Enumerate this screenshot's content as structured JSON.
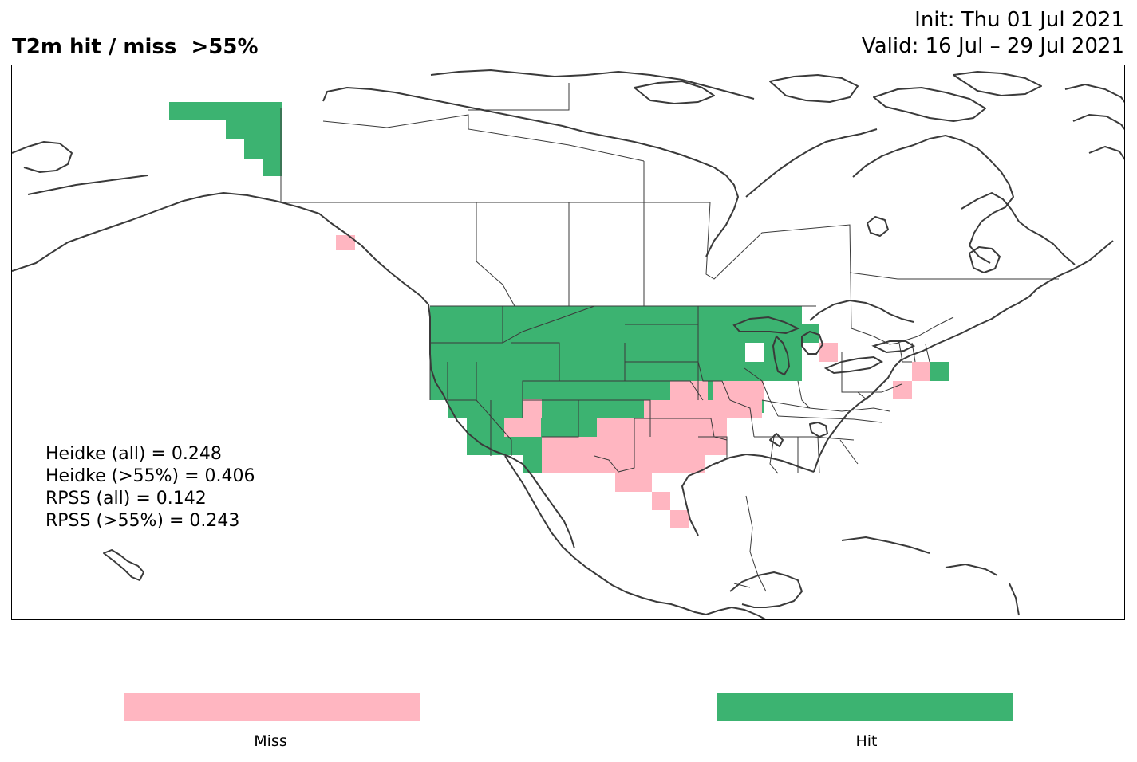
{
  "title": "T2m hit / miss  >55%",
  "init": "Init: Thu 01 Jul 2021",
  "valid": "Valid: 16 Jul – 29 Jul 2021",
  "scores": [
    "Heidke (all) = 0.248",
    "Heidke (>55%) = 0.406",
    "RPSS (all) = 0.142",
    "RPSS (>55%) = 0.243"
  ],
  "legend": {
    "colors": {
      "miss": "#ffb6c1",
      "neutral": "#ffffff",
      "hit": "#3cb371"
    },
    "miss_label": "Miss",
    "hit_label": "Hit"
  }
}
